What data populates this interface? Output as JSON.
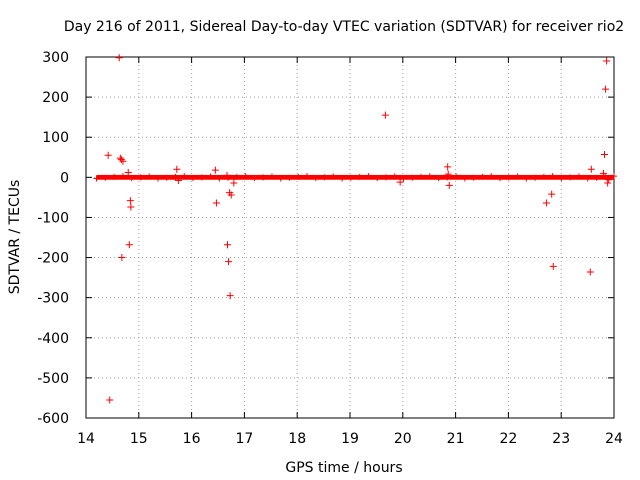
{
  "chart_data": {
    "type": "scatter",
    "title": "Day 216 of 2011, Sidereal Day-to-day VTEC variation (SDTVAR) for receiver rio2",
    "xlabel": "GPS time / hours",
    "ylabel": "SDTVAR / TECUs",
    "xlim": [
      14,
      24
    ],
    "ylim": [
      -600,
      300
    ],
    "xticks": [
      14,
      15,
      16,
      17,
      18,
      19,
      20,
      21,
      22,
      23,
      24
    ],
    "yticks": [
      300,
      200,
      100,
      0,
      -100,
      -200,
      -300,
      -400,
      -500,
      -600
    ],
    "grid": true,
    "legend": "none",
    "marker": "+",
    "series": [
      {
        "name": "SDTVAR",
        "color": "#ff0000",
        "dense_band": {
          "x_start": 14.2,
          "x_end": 24,
          "y_min": -6,
          "y_max": 6
        },
        "points": [
          {
            "x": 14.42,
            "y": 55
          },
          {
            "x": 14.45,
            "y": -555
          },
          {
            "x": 14.63,
            "y": 298
          },
          {
            "x": 14.65,
            "y": 48
          },
          {
            "x": 14.67,
            "y": 44
          },
          {
            "x": 14.68,
            "y": -200
          },
          {
            "x": 14.7,
            "y": 40
          },
          {
            "x": 14.8,
            "y": 12
          },
          {
            "x": 14.82,
            "y": -168
          },
          {
            "x": 14.84,
            "y": -58
          },
          {
            "x": 14.85,
            "y": -74
          },
          {
            "x": 15.72,
            "y": 20
          },
          {
            "x": 15.75,
            "y": -8
          },
          {
            "x": 16.45,
            "y": 18
          },
          {
            "x": 16.47,
            "y": -64
          },
          {
            "x": 16.67,
            "y": 5
          },
          {
            "x": 16.68,
            "y": -168
          },
          {
            "x": 16.7,
            "y": -210
          },
          {
            "x": 16.72,
            "y": -38
          },
          {
            "x": 16.73,
            "y": -295
          },
          {
            "x": 16.75,
            "y": -44
          },
          {
            "x": 16.8,
            "y": -14
          },
          {
            "x": 19.67,
            "y": 155
          },
          {
            "x": 19.95,
            "y": -12
          },
          {
            "x": 20.85,
            "y": 26
          },
          {
            "x": 20.88,
            "y": -20
          },
          {
            "x": 20.86,
            "y": 8
          },
          {
            "x": 22.72,
            "y": -64
          },
          {
            "x": 22.82,
            "y": -42
          },
          {
            "x": 22.85,
            "y": -222
          },
          {
            "x": 23.55,
            "y": -236
          },
          {
            "x": 23.57,
            "y": 20
          },
          {
            "x": 23.8,
            "y": 10
          },
          {
            "x": 23.82,
            "y": 57
          },
          {
            "x": 23.84,
            "y": 220
          },
          {
            "x": 23.86,
            "y": 290
          },
          {
            "x": 23.88,
            "y": -14
          },
          {
            "x": 23.9,
            "y": -6
          }
        ]
      }
    ]
  }
}
